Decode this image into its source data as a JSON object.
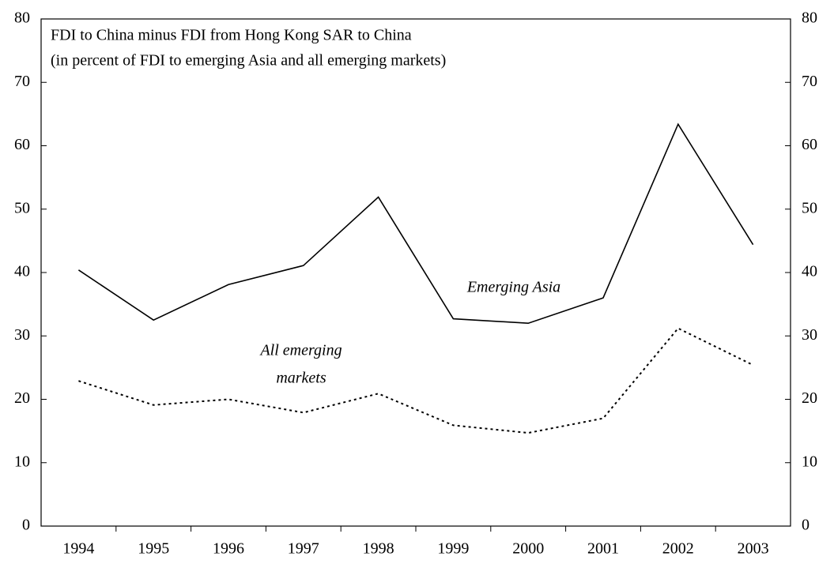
{
  "chart_data": {
    "type": "line",
    "title": "FDI to China minus FDI from Hong Kong SAR to China",
    "subtitle": "(in percent of FDI to emerging Asia and all emerging markets)",
    "annotations": [
      "Emerging Asia",
      "All emerging",
      "markets"
    ],
    "categories": [
      "1994",
      "1995",
      "1996",
      "1997",
      "1998",
      "1999",
      "2000",
      "2001",
      "2002",
      "2003"
    ],
    "series": [
      {
        "color": "#000000",
        "line_style": "solid",
        "values": [
          40.4,
          32.5,
          38.1,
          41.1,
          51.9,
          32.7,
          32.0,
          36.0,
          63.4,
          44.4
        ]
      },
      {
        "color": "#000000",
        "line_style": "dotted",
        "values": [
          22.9,
          19.1,
          20.0,
          17.9,
          20.9,
          15.9,
          14.7,
          17.0,
          31.2,
          25.4
        ]
      }
    ],
    "ylim": [
      0,
      80
    ],
    "yticks": [
      0,
      10,
      20,
      30,
      40,
      50,
      60,
      70,
      80
    ],
    "y2lim": [
      0,
      80
    ],
    "y2ticks": [
      0,
      10,
      20,
      30,
      40,
      50,
      60,
      70,
      80
    ]
  }
}
